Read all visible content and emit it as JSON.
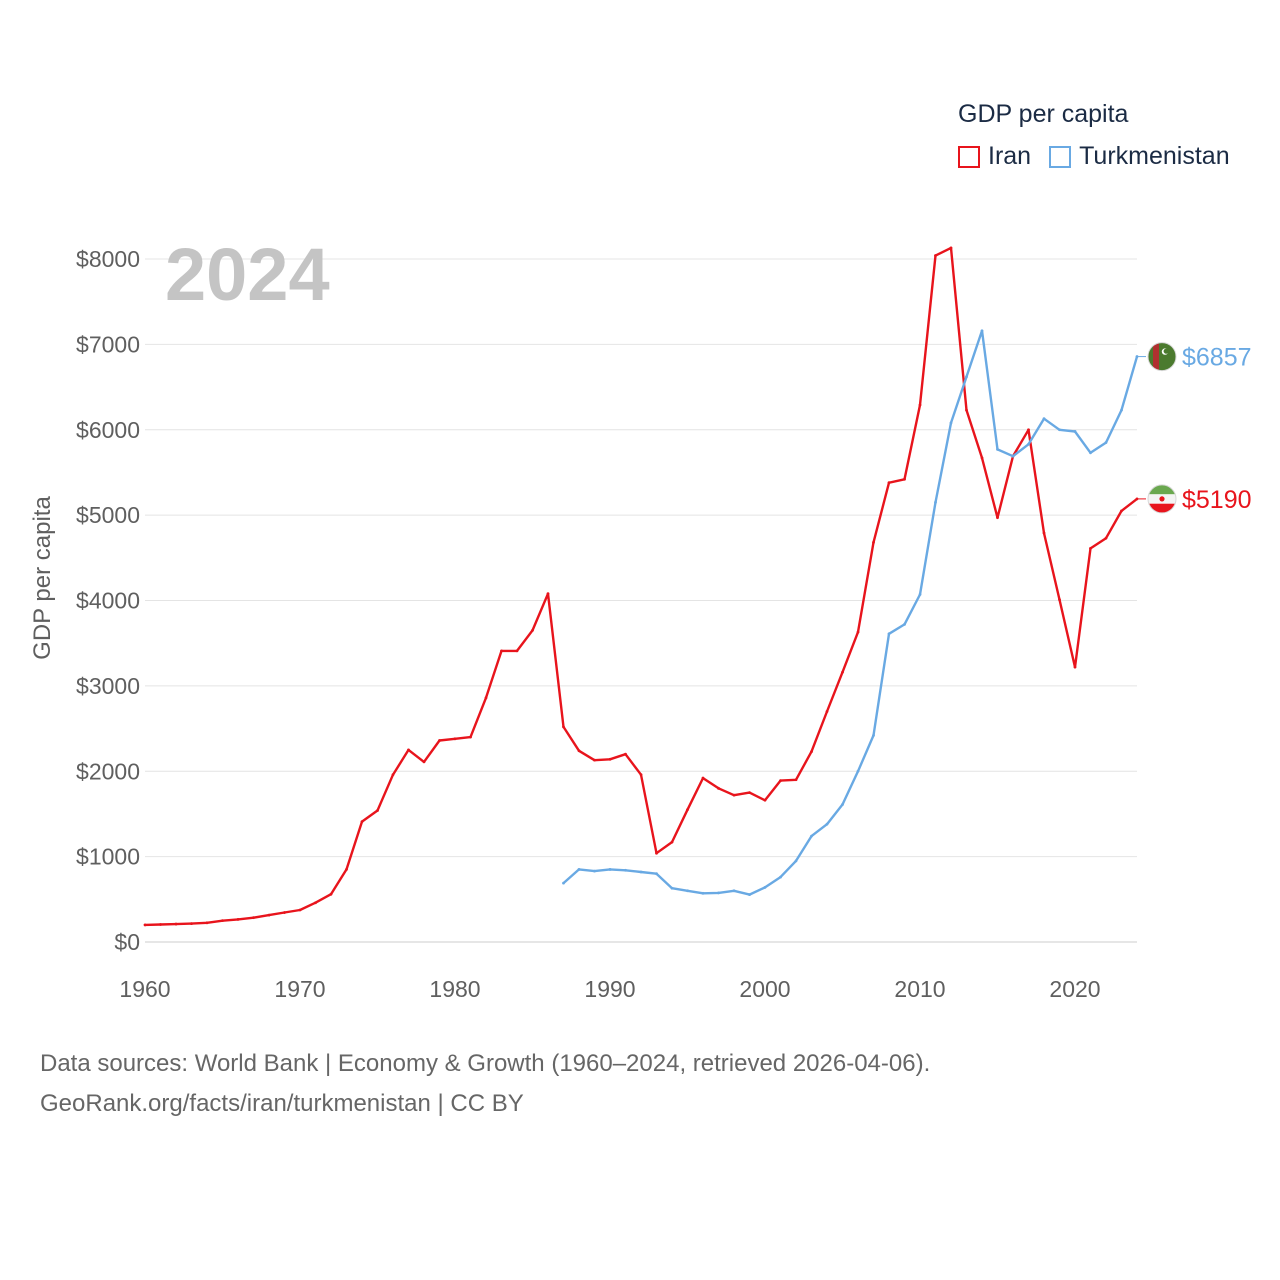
{
  "chart_data": {
    "type": "line",
    "title": "GDP per capita",
    "year_label": "2024",
    "ylabel": "GDP per capita",
    "xlabel": "",
    "xlim": [
      1960,
      2024
    ],
    "ylim": [
      0,
      8000
    ],
    "x_ticks": [
      1960,
      1970,
      1980,
      1990,
      2000,
      2010,
      2020
    ],
    "x_tick_labels": [
      "1960",
      "1970",
      "1980",
      "1990",
      "2000",
      "2010",
      "2020"
    ],
    "y_ticks": [
      0,
      1000,
      2000,
      3000,
      4000,
      5000,
      6000,
      7000,
      8000
    ],
    "y_tick_labels": [
      "$0",
      "$1000",
      "$2000",
      "$3000",
      "$4000",
      "$5000",
      "$6000",
      "$7000",
      "$8000"
    ],
    "grid": true,
    "legend_position": "top-right",
    "series": [
      {
        "name": "Iran",
        "color": "#e8141c",
        "end_label": "$5190",
        "flag_icon": "iran-flag-icon",
        "x": [
          1960,
          1961,
          1962,
          1963,
          1964,
          1965,
          1966,
          1967,
          1968,
          1969,
          1970,
          1971,
          1972,
          1973,
          1974,
          1975,
          1976,
          1977,
          1978,
          1979,
          1980,
          1981,
          1982,
          1983,
          1984,
          1985,
          1986,
          1987,
          1988,
          1989,
          1990,
          1991,
          1992,
          1993,
          1994,
          1995,
          1996,
          1997,
          1998,
          1999,
          2000,
          2001,
          2002,
          2003,
          2004,
          2005,
          2006,
          2007,
          2008,
          2009,
          2010,
          2011,
          2012,
          2013,
          2014,
          2015,
          2016,
          2017,
          2018,
          2019,
          2020,
          2021,
          2022,
          2023,
          2024
        ],
        "values": [
          200,
          205,
          210,
          215,
          225,
          250,
          265,
          285,
          315,
          345,
          375,
          460,
          560,
          850,
          1410,
          1540,
          1960,
          2250,
          2110,
          2360,
          2380,
          2400,
          2860,
          3410,
          3410,
          3650,
          4080,
          2520,
          2240,
          2130,
          2140,
          2200,
          1960,
          1040,
          1170,
          1550,
          1920,
          1800,
          1720,
          1750,
          1660,
          1890,
          1900,
          2230,
          2700,
          3160,
          3630,
          4680,
          5380,
          5420,
          6290,
          8040,
          8130,
          6230,
          5670,
          4970,
          5690,
          6000,
          4790,
          4010,
          3220,
          4610,
          4730,
          5050,
          5190
        ]
      },
      {
        "name": "Turkmenistan",
        "color": "#69a9e3",
        "end_label": "$6857",
        "flag_icon": "turkmenistan-flag-icon",
        "x": [
          1987,
          1988,
          1989,
          1990,
          1991,
          1992,
          1993,
          1994,
          1995,
          1996,
          1997,
          1998,
          1999,
          2000,
          2001,
          2002,
          2003,
          2004,
          2005,
          2006,
          2007,
          2008,
          2009,
          2010,
          2011,
          2012,
          2013,
          2014,
          2015,
          2016,
          2017,
          2018,
          2019,
          2020,
          2021,
          2022,
          2023,
          2024
        ],
        "values": [
          690,
          850,
          830,
          850,
          840,
          820,
          800,
          630,
          600,
          570,
          575,
          600,
          555,
          640,
          760,
          950,
          1240,
          1380,
          1610,
          2000,
          2420,
          3610,
          3720,
          4070,
          5150,
          6080,
          6620,
          7160,
          5770,
          5690,
          5830,
          6130,
          6000,
          5980,
          5730,
          5850,
          6230,
          6857
        ]
      }
    ]
  },
  "footer": {
    "line1": "Data sources: World Bank | Economy & Growth (1960–2024, retrieved 2026-04-06).",
    "line2": "GeoRank.org/facts/iran/turkmenistan | CC BY"
  }
}
